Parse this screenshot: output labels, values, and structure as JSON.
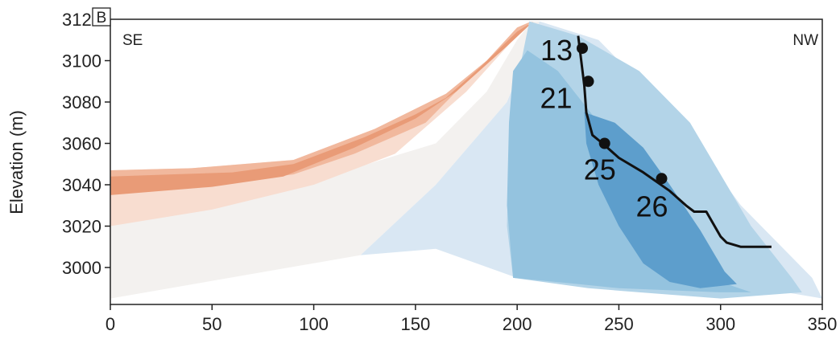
{
  "chart_data": {
    "type": "area",
    "panel_label": "B",
    "ylabel": "Elevation (m)",
    "xlabel": "",
    "xlim": [
      0,
      350
    ],
    "ylim": [
      2985,
      3120
    ],
    "xticks": [
      0,
      50,
      100,
      150,
      200,
      250,
      300,
      350
    ],
    "yticks": [
      3000,
      3020,
      3040,
      3060,
      3080,
      3100,
      3120
    ],
    "corner_left": "SE",
    "corner_right": "NW",
    "grid": false,
    "colors": {
      "white_fill": "#ffffff",
      "very_light_grey": "#f3f1ef",
      "light_peach": "#f8ddd0",
      "peach": "#f1b89d",
      "orange": "#e99b77",
      "lightest_blue": "#d9e7f3",
      "light_blue": "#b3d4e8",
      "mid_blue": "#94c3df",
      "dark_blue": "#5d9ecc",
      "line": "#111111"
    },
    "regions": [
      {
        "color": "very_light_grey",
        "points": [
          [
            0,
            3021
          ],
          [
            50,
            3035
          ],
          [
            110,
            3045
          ],
          [
            160,
            3060
          ],
          [
            185,
            3085
          ],
          [
            200,
            3110
          ],
          [
            207,
            3119
          ],
          [
            211,
            3119
          ],
          [
            195,
            3080
          ],
          [
            160,
            3040
          ],
          [
            123,
            3006
          ],
          [
            0,
            2985
          ]
        ]
      },
      {
        "color": "lightest_blue",
        "points": [
          [
            123,
            3006
          ],
          [
            160,
            3040
          ],
          [
            195,
            3080
          ],
          [
            211,
            3119
          ],
          [
            240,
            3110
          ],
          [
            280,
            3070
          ],
          [
            310,
            3030
          ],
          [
            345,
            2995
          ],
          [
            350,
            2985
          ],
          [
            320,
            2990
          ],
          [
            280,
            2992
          ],
          [
            250,
            2990
          ],
          [
            200,
            2995
          ],
          [
            160,
            3009
          ]
        ]
      },
      {
        "color": "light_peach",
        "points": [
          [
            0,
            3047
          ],
          [
            40,
            3048
          ],
          [
            90,
            3052
          ],
          [
            130,
            3067
          ],
          [
            165,
            3084
          ],
          [
            185,
            3100
          ],
          [
            200,
            3116
          ],
          [
            207,
            3119
          ],
          [
            198,
            3110
          ],
          [
            175,
            3085
          ],
          [
            140,
            3055
          ],
          [
            100,
            3040
          ],
          [
            50,
            3028
          ],
          [
            0,
            3020
          ]
        ]
      },
      {
        "color": "peach",
        "points": [
          [
            0,
            3047
          ],
          [
            40,
            3048
          ],
          [
            90,
            3052
          ],
          [
            130,
            3067
          ],
          [
            165,
            3084
          ],
          [
            185,
            3100
          ],
          [
            200,
            3116
          ],
          [
            207,
            3119
          ],
          [
            195,
            3108
          ],
          [
            170,
            3085
          ],
          [
            155,
            3070
          ],
          [
            120,
            3055
          ],
          [
            90,
            3045
          ],
          [
            50,
            3040
          ],
          [
            0,
            3036
          ]
        ]
      },
      {
        "color": "orange",
        "points": [
          [
            0,
            3044
          ],
          [
            30,
            3045
          ],
          [
            60,
            3046
          ],
          [
            90,
            3050
          ],
          [
            125,
            3063
          ],
          [
            150,
            3074
          ],
          [
            165,
            3082
          ],
          [
            182,
            3097
          ],
          [
            200,
            3114
          ],
          [
            208,
            3119
          ],
          [
            195,
            3107
          ],
          [
            170,
            3085
          ],
          [
            150,
            3072
          ],
          [
            120,
            3058
          ],
          [
            85,
            3044
          ],
          [
            50,
            3039
          ],
          [
            0,
            3035
          ]
        ]
      },
      {
        "color": "light_blue",
        "points": [
          [
            206,
            3119
          ],
          [
            230,
            3112
          ],
          [
            260,
            3095
          ],
          [
            285,
            3070
          ],
          [
            300,
            3045
          ],
          [
            315,
            3020
          ],
          [
            335,
            2995
          ],
          [
            340,
            2988
          ],
          [
            300,
            2985
          ],
          [
            260,
            2988
          ],
          [
            235,
            2990
          ],
          [
            198,
            2995
          ],
          [
            195,
            3020
          ],
          [
            196,
            3060
          ],
          [
            200,
            3090
          ]
        ]
      },
      {
        "color": "mid_blue",
        "points": [
          [
            205,
            3105
          ],
          [
            220,
            3095
          ],
          [
            240,
            3070
          ],
          [
            258,
            3050
          ],
          [
            270,
            3035
          ],
          [
            285,
            3010
          ],
          [
            300,
            2993
          ],
          [
            315,
            2988
          ],
          [
            330,
            2988
          ],
          [
            300,
            2988
          ],
          [
            250,
            2990
          ],
          [
            230,
            2992
          ],
          [
            198,
            2995
          ],
          [
            195,
            3030
          ],
          [
            196,
            3070
          ],
          [
            198,
            3095
          ]
        ]
      },
      {
        "color": "dark_blue",
        "points": [
          [
            233,
            3075
          ],
          [
            248,
            3070
          ],
          [
            262,
            3058
          ],
          [
            275,
            3040
          ],
          [
            290,
            3018
          ],
          [
            302,
            2998
          ],
          [
            308,
            2992
          ],
          [
            290,
            2990
          ],
          [
            275,
            2993
          ],
          [
            262,
            3002
          ],
          [
            250,
            3020
          ],
          [
            240,
            3040
          ],
          [
            234,
            3060
          ]
        ]
      }
    ],
    "profile_line": [
      [
        230,
        3112
      ],
      [
        233,
        3088
      ],
      [
        234,
        3075
      ],
      [
        237,
        3064
      ],
      [
        242,
        3060
      ],
      [
        250,
        3053
      ],
      [
        262,
        3046
      ],
      [
        275,
        3037
      ],
      [
        283,
        3030
      ],
      [
        287,
        3027
      ],
      [
        293,
        3027
      ],
      [
        300,
        3015
      ],
      [
        303,
        3012
      ],
      [
        310,
        3010
      ],
      [
        325,
        3010
      ]
    ],
    "sample_points": [
      {
        "label": "13",
        "x": 232,
        "y": 3106
      },
      {
        "label": "21",
        "x": 235,
        "y": 3090
      },
      {
        "label": "25",
        "x": 243,
        "y": 3060
      },
      {
        "label": "26",
        "x": 271,
        "y": 3043
      }
    ]
  }
}
